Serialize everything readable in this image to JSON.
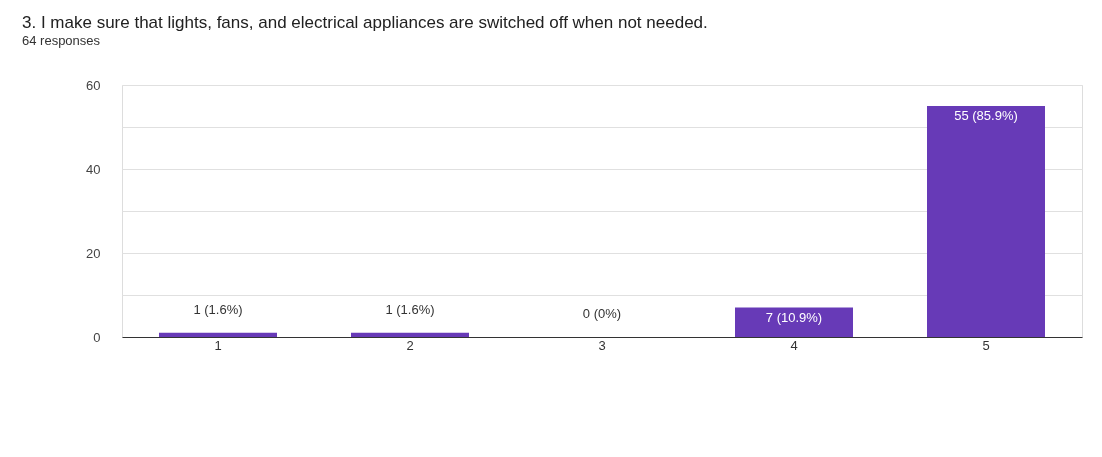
{
  "chart_data": {
    "type": "bar",
    "title": "3. I make sure that lights, fans, and electrical appliances are switched off when not needed.",
    "subtitle": "64 responses",
    "categories": [
      "1",
      "2",
      "3",
      "4",
      "5"
    ],
    "values": [
      1,
      1,
      0,
      7,
      55
    ],
    "value_labels": [
      "1 (1.6%)",
      "1 (1.6%)",
      "0 (0%)",
      "7 (10.9%)",
      "55 (85.9%)"
    ],
    "color": "#673ab7",
    "ylim": [
      0,
      60
    ],
    "yticks": [
      0,
      {
        "value": 10,
        "label": null
      },
      20,
      {
        "value": 30,
        "label": null
      },
      40,
      {
        "value": 50,
        "label": null
      },
      60
    ],
    "grid": "y"
  }
}
